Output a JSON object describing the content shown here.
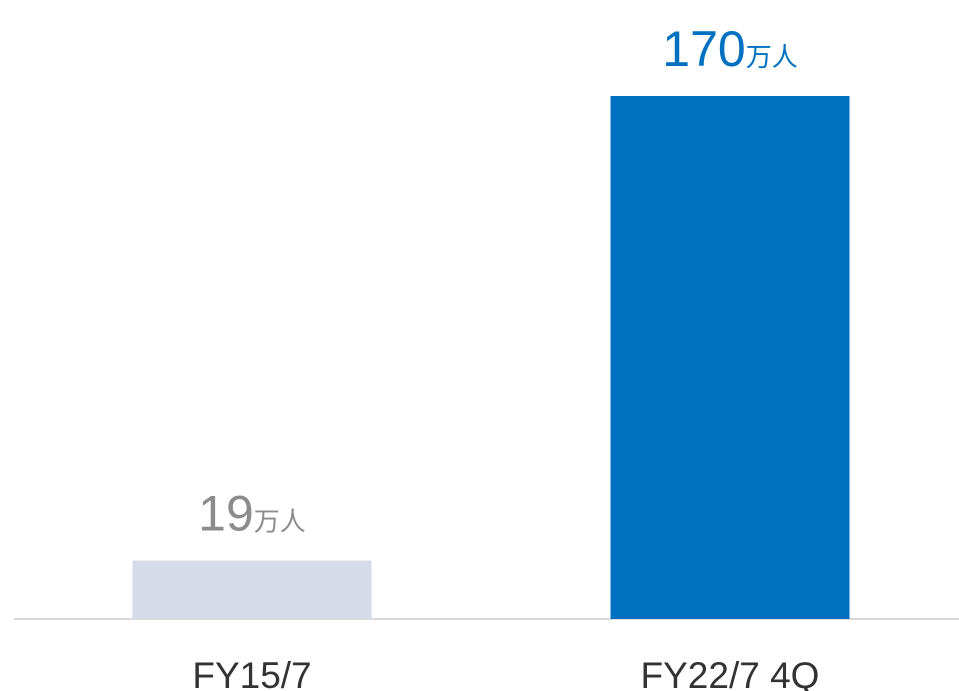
{
  "chart_data": {
    "type": "bar",
    "categories": [
      "FY15/7",
      "FY22/7 4Q"
    ],
    "values": [
      19,
      170
    ],
    "value_labels": [
      "19万人",
      "170万人"
    ],
    "colors": [
      "#d5dbe8",
      "#0070c0"
    ],
    "label_colors": [
      "#8c8c8c",
      "#0070c0"
    ],
    "ylim": [
      0,
      170
    ]
  }
}
